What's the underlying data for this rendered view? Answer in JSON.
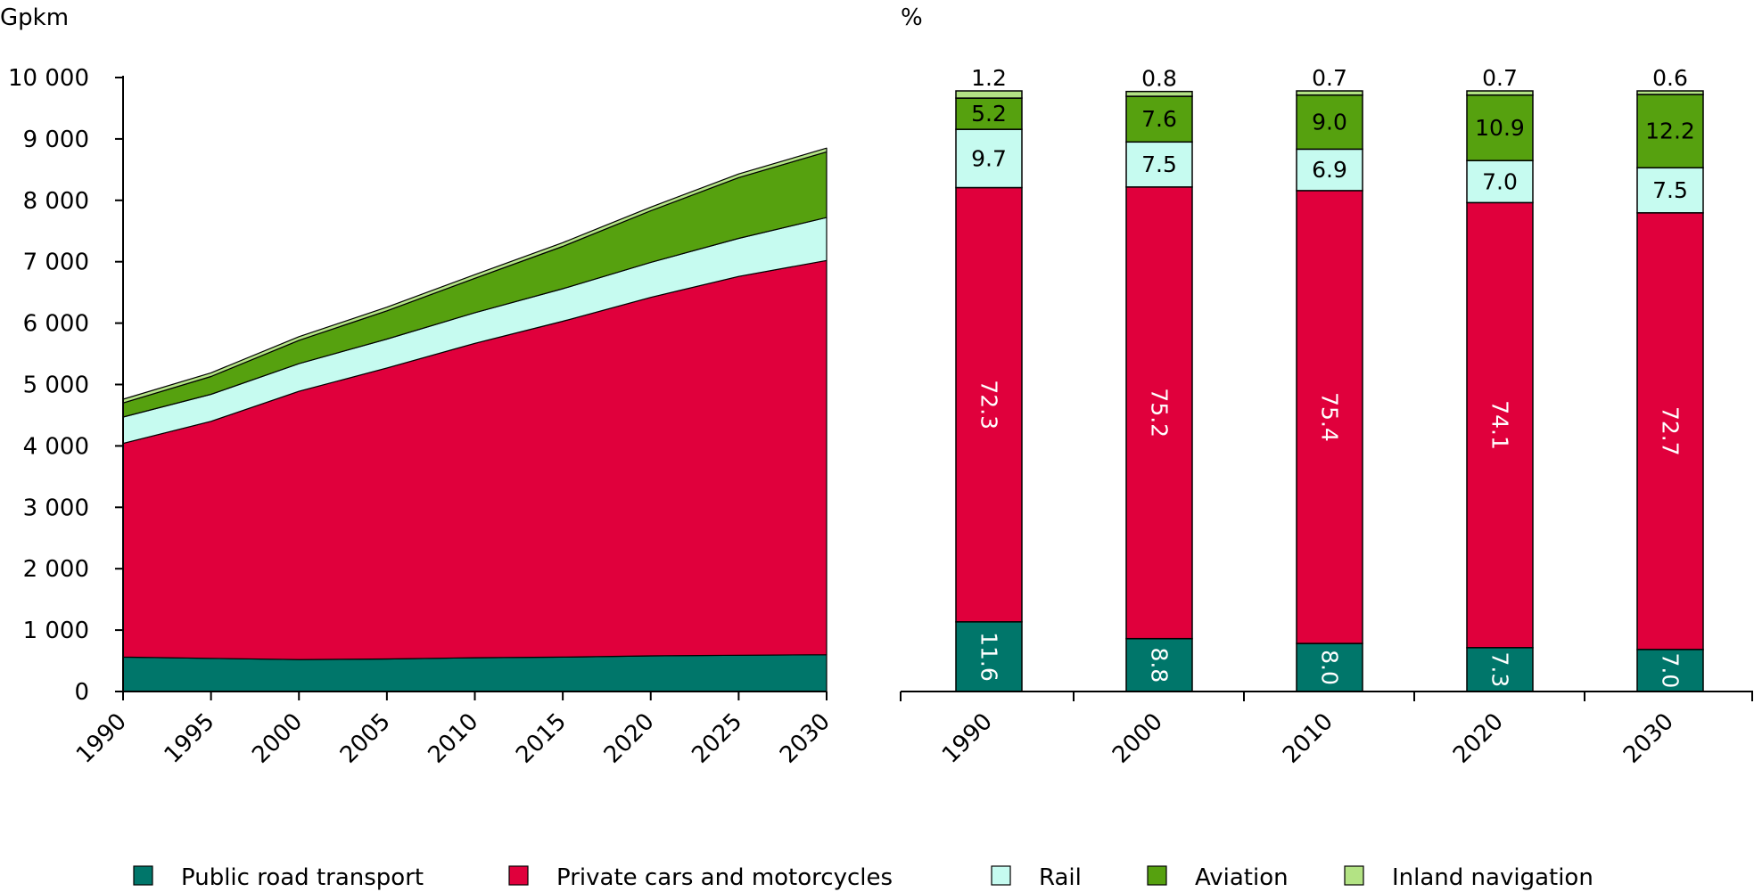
{
  "colors": {
    "public_road": "#00766A",
    "private_cars": "#E0003C",
    "rail": "#C6FBF0",
    "aviation": "#56A10F",
    "inland": "#B3E384"
  },
  "chart_data": [
    {
      "type": "area",
      "stacked": true,
      "ylabel": "Gpkm",
      "ylim": [
        0,
        10000
      ],
      "yticks": [
        0,
        1000,
        2000,
        3000,
        4000,
        5000,
        6000,
        7000,
        8000,
        9000,
        10000
      ],
      "ytick_labels": [
        "0",
        "1 000",
        "2 000",
        "3 000",
        "4 000",
        "5 000",
        "6 000",
        "7 000",
        "8 000",
        "9 000",
        "10 000"
      ],
      "x": [
        1990,
        1995,
        2000,
        2005,
        2010,
        2015,
        2020,
        2025,
        2030
      ],
      "xtick_labels": [
        "1990",
        "1995",
        "2000",
        "2005",
        "2010",
        "2015",
        "2020",
        "2025",
        "2030"
      ],
      "series": [
        {
          "name": "Public road transport",
          "color_key": "public_road",
          "values": [
            560,
            540,
            520,
            530,
            550,
            560,
            580,
            590,
            600
          ]
        },
        {
          "name": "Private cars and motorcycles",
          "color_key": "private_cars",
          "values": [
            3480,
            3860,
            4370,
            4740,
            5120,
            5470,
            5840,
            6170,
            6420
          ]
        },
        {
          "name": "Rail",
          "color_key": "rail",
          "values": [
            430,
            440,
            450,
            470,
            500,
            530,
            570,
            620,
            700
          ]
        },
        {
          "name": "Aviation",
          "color_key": "aviation",
          "values": [
            230,
            290,
            380,
            460,
            560,
            690,
            840,
            990,
            1070
          ]
        },
        {
          "name": "Inland navigation",
          "color_key": "inland",
          "values": [
            60,
            60,
            60,
            60,
            60,
            60,
            60,
            60,
            60
          ]
        }
      ],
      "grid": false
    },
    {
      "type": "bar",
      "stacked": true,
      "ylabel": "%",
      "ylim": [
        0,
        100
      ],
      "categories": [
        "1990",
        "2000",
        "2010",
        "2020",
        "2030"
      ],
      "series": [
        {
          "name": "Public road transport",
          "color_key": "public_road",
          "values": [
            11.6,
            8.8,
            8.0,
            7.3,
            7.0
          ],
          "labels": [
            "11.6",
            "8.8",
            "8.0",
            "7.3",
            "7.0"
          ],
          "label_color": "#ffffff",
          "label_rotated": true
        },
        {
          "name": "Private cars and motorcycles",
          "color_key": "private_cars",
          "values": [
            72.3,
            75.2,
            75.4,
            74.1,
            72.7
          ],
          "labels": [
            "72.3",
            "75.2",
            "75.4",
            "74.1",
            "72.7"
          ],
          "label_color": "#ffffff",
          "label_rotated": true
        },
        {
          "name": "Rail",
          "color_key": "rail",
          "values": [
            9.7,
            7.5,
            6.9,
            7.0,
            7.5
          ],
          "labels": [
            "9.7",
            "7.5",
            "6.9",
            "7.0",
            "7.5"
          ],
          "label_color": "#000000",
          "label_rotated": false
        },
        {
          "name": "Aviation",
          "color_key": "aviation",
          "values": [
            5.2,
            7.6,
            9.0,
            10.9,
            12.2
          ],
          "labels": [
            "5.2",
            "7.6",
            "9.0",
            "10.9",
            "12.2"
          ],
          "label_color": "#000000",
          "label_rotated": false
        },
        {
          "name": "Inland navigation",
          "color_key": "inland",
          "values": [
            1.2,
            0.8,
            0.7,
            0.7,
            0.6
          ],
          "labels": [
            "1.2",
            "0.8",
            "0.7",
            "0.7",
            "0.6"
          ],
          "label_color": "#000000",
          "label_rotated": false,
          "label_above": true
        }
      ],
      "grid": false
    }
  ],
  "legend": {
    "placement": "bottom",
    "items": [
      {
        "label": "Public road transport",
        "color_key": "public_road"
      },
      {
        "label": "Private cars and motorcycles",
        "color_key": "private_cars"
      },
      {
        "label": "Rail",
        "color_key": "rail"
      },
      {
        "label": "Aviation",
        "color_key": "aviation"
      },
      {
        "label": "Inland navigation",
        "color_key": "inland"
      }
    ]
  }
}
